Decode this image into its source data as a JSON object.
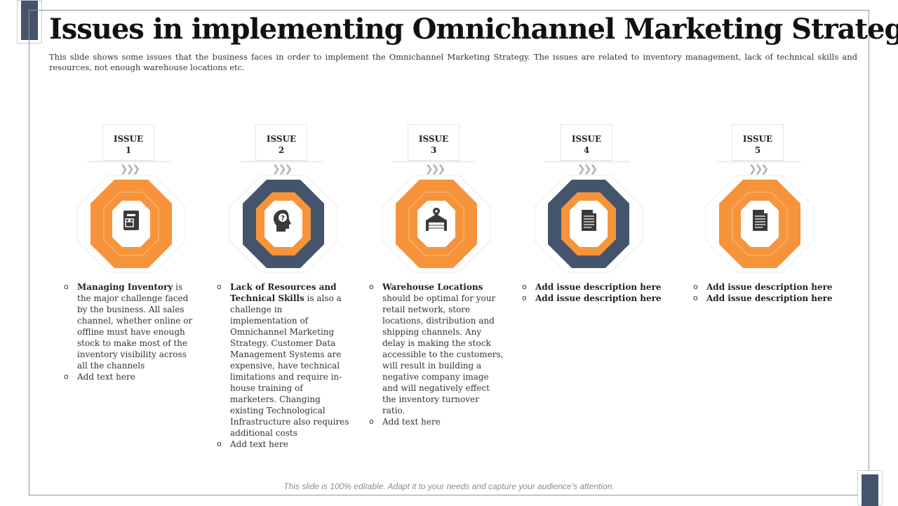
{
  "slide": {
    "title": "Issues in implementing Omnichannel Marketing Strategy",
    "subtitle": "This slide shows some issues that the business faces in order to implement the Omnichannel Marketing Strategy.  The issues are related  to inventory  management,  lack of technical skills and resources,  not enough  warehouse  locations etc.",
    "footer": "This slide is 100% editable. Adapt it to your needs and capture your audience's attention."
  },
  "colors": {
    "orange": "#f7933a",
    "navy": "#44546a"
  },
  "issues": [
    {
      "label": "ISSUE",
      "number": "1",
      "chevrons": "❯❯❯",
      "icon": "inventory-clipboard-icon",
      "outer": "orange",
      "points": [
        {
          "bold": "Managing Inventory",
          "text": " is the major  challenge faced by the business. All sales channel, whether  online or offline must have enough  stock to make most of the inventory visibility across all the channels"
        },
        {
          "bold": "",
          "text": "Add text here"
        }
      ]
    },
    {
      "label": "ISSUE",
      "number": "2",
      "chevrons": "❯❯❯",
      "icon": "head-question-icon",
      "outer": "navy",
      "points": [
        {
          "bold": "Lack of Resources and Technical Skills",
          "text": " is also a challenge in implementation of Omnichannel Marketing Strategy.  Customer Data Management  Systems are expensive, have technical limitations and require in-house training of marketers. Changing  existing Technological Infrastructure also requires additional costs"
        },
        {
          "bold": "",
          "text": "Add text here"
        }
      ]
    },
    {
      "label": "ISSUE",
      "number": "3",
      "chevrons": "❯❯❯",
      "icon": "warehouse-icon",
      "outer": "orange",
      "points": [
        {
          "bold": "Warehouse Locations",
          "text": " should be optimal for your retail network, store locations, distribution  and shipping channels. Any delay is making the stock accessible to the customers, will result in building a negative company image and will negatively effect the inventory turnover  ratio."
        },
        {
          "bold": "",
          "text": "Add text here"
        }
      ]
    },
    {
      "label": "ISSUE",
      "number": "4",
      "chevrons": "❯❯❯",
      "icon": "document-icon",
      "outer": "navy",
      "points": [
        {
          "bold": "Add issue description here",
          "text": ""
        },
        {
          "bold": "Add issue description here",
          "text": ""
        }
      ]
    },
    {
      "label": "ISSUE",
      "number": "5",
      "chevrons": "❯❯❯",
      "icon": "document-icon",
      "outer": "orange",
      "points": [
        {
          "bold": "Add issue description here",
          "text": ""
        },
        {
          "bold": "Add issue description here",
          "text": ""
        }
      ]
    }
  ]
}
